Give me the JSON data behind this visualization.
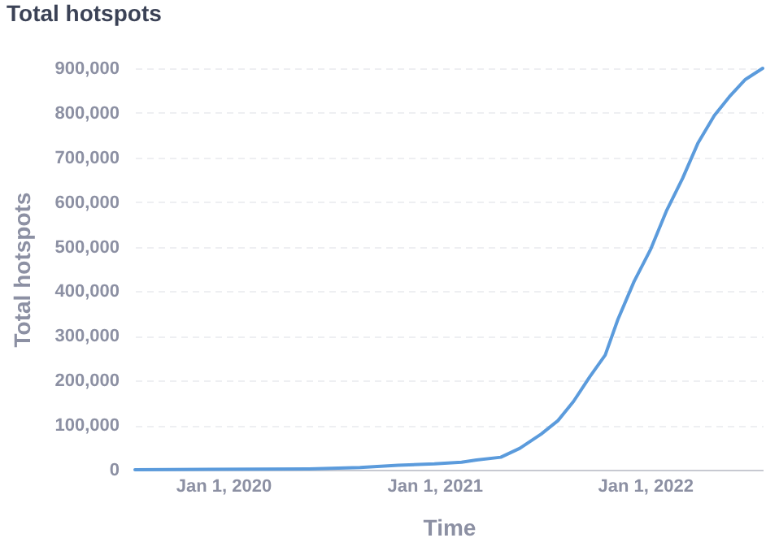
{
  "chart_data": {
    "type": "line",
    "title": "Total hotspots",
    "xlabel": "Time",
    "ylabel": "Total hotspots",
    "x": [
      "2019-08-01",
      "2020-05-29",
      "2020-08-25",
      "2020-10-30",
      "2021-01-01",
      "2021-02-17",
      "2021-03-15",
      "2021-04-26",
      "2021-05-29",
      "2021-07-05",
      "2021-08-03",
      "2021-08-30",
      "2021-09-27",
      "2021-10-24",
      "2021-11-15",
      "2021-12-13",
      "2022-01-11",
      "2022-02-07",
      "2022-03-07",
      "2022-04-03",
      "2022-05-01",
      "2022-05-27",
      "2022-06-24",
      "2022-07-24"
    ],
    "series": [
      {
        "color": "#5b9bdc",
        "values": [
          0,
          2000,
          5000,
          10000,
          13000,
          17000,
          22000,
          28000,
          48000,
          80000,
          110000,
          153000,
          208000,
          257000,
          337000,
          422000,
          495000,
          580000,
          653000,
          733000,
          794000,
          836000,
          875000,
          900000
        ]
      }
    ],
    "xlim": [
      "2019-08-01",
      "2022-07-24"
    ],
    "xticks": [
      {
        "value": "2020-01-01",
        "label": "Jan 1, 2020"
      },
      {
        "value": "2021-01-01",
        "label": "Jan 1, 2021"
      },
      {
        "value": "2022-01-01",
        "label": "Jan 1, 2022"
      }
    ],
    "ylim": [
      0,
      900000
    ],
    "yticks": [
      {
        "value": 0,
        "label": "0"
      },
      {
        "value": 100000,
        "label": "100,000"
      },
      {
        "value": 200000,
        "label": "200,000"
      },
      {
        "value": 300000,
        "label": "300,000"
      },
      {
        "value": 400000,
        "label": "400,000"
      },
      {
        "value": 500000,
        "label": "500,000"
      },
      {
        "value": 600000,
        "label": "600,000"
      },
      {
        "value": 700000,
        "label": "700,000"
      },
      {
        "value": 800000,
        "label": "800,000"
      },
      {
        "value": 900000,
        "label": "900,000"
      }
    ],
    "grid": "y",
    "marker": "none",
    "line_style": "solid"
  }
}
